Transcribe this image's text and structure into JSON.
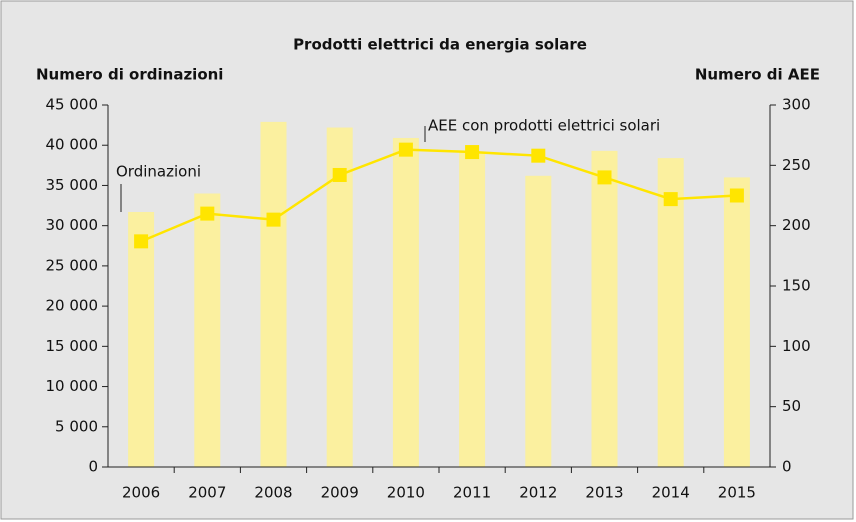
{
  "chart_data": {
    "type": "bar",
    "title": "Prodotti elettrici da energia solare",
    "y_label": "Numero di ordinazioni",
    "y2_label": "Numero di AEE",
    "categories": [
      "2006",
      "2007",
      "2008",
      "2009",
      "2010",
      "2011",
      "2012",
      "2013",
      "2014",
      "2015"
    ],
    "series": [
      {
        "name": "Ordinazioni",
        "type": "bar",
        "axis": "y",
        "color": "#fbf09f",
        "values": [
          31700,
          34000,
          42900,
          42200,
          40900,
          39200,
          36200,
          39300,
          38400,
          36000
        ]
      },
      {
        "name": "AEE con prodotti elettrici solari",
        "type": "line",
        "axis": "y2",
        "color": "#ffe500",
        "values": [
          187,
          210,
          205,
          242,
          263,
          261,
          258,
          240,
          222,
          225
        ]
      }
    ],
    "ylim": [
      0,
      45000
    ],
    "yticks": [
      0,
      {
        "value": 5000,
        "label": "5 000"
      },
      {
        "value": 10000,
        "label": "10 000"
      },
      {
        "value": 15000,
        "label": "15 000"
      },
      {
        "value": 20000,
        "label": "20 000"
      },
      {
        "value": 25000,
        "label": "25 000"
      },
      {
        "value": 30000,
        "label": "30 000"
      },
      {
        "value": 35000,
        "label": "35 000"
      },
      {
        "value": 40000,
        "label": "40 000"
      },
      {
        "value": 45000,
        "label": "45 000"
      }
    ],
    "y2lim": [
      0,
      300
    ],
    "y2ticks": [
      0,
      50,
      100,
      150,
      200,
      250,
      300
    ]
  }
}
